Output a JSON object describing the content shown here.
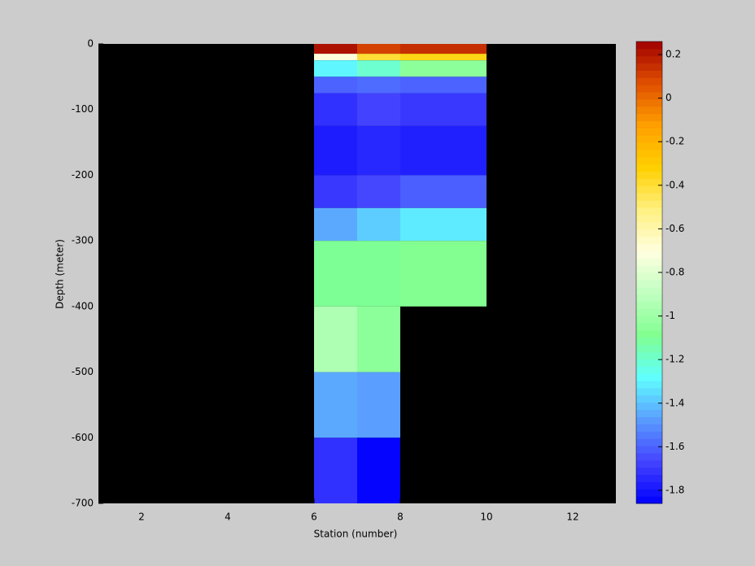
{
  "chart_data": {
    "type": "heatmap",
    "xlabel": "Station (number)",
    "ylabel": "Depth (meter)",
    "x_edges": [
      6,
      7,
      8,
      10
    ],
    "y_edges": [
      0,
      -15,
      -25,
      -50,
      -75,
      -125,
      -200,
      -250,
      -300,
      -400,
      -500,
      -600,
      -700
    ],
    "values": [
      [
        0.22,
        0.1,
        0.15
      ],
      [
        -0.7,
        -0.4,
        -0.35
      ],
      [
        -1.3,
        -1.2,
        -1.05
      ],
      [
        -1.6,
        -1.58,
        -1.6
      ],
      [
        -1.72,
        -1.67,
        -1.7
      ],
      [
        -1.78,
        -1.75,
        -1.77
      ],
      [
        -1.7,
        -1.66,
        -1.61
      ],
      [
        -1.45,
        -1.38,
        -1.32
      ],
      [
        -1.1,
        -1.1,
        -1.08
      ],
      [
        -0.95,
        -1.05,
        null
      ],
      [
        -1.45,
        -1.47,
        null
      ],
      [
        -1.72,
        -1.85,
        null
      ]
    ],
    "xlim": [
      1,
      13
    ],
    "xticks": [
      2,
      4,
      6,
      8,
      10,
      12
    ],
    "ylim": [
      -700,
      0
    ],
    "yticks": [
      0,
      -100,
      -200,
      -300,
      -400,
      -500,
      -600,
      -700
    ],
    "clim": [
      -1.86,
      0.26
    ],
    "cticks": [
      0.2,
      0,
      -0.2,
      -0.4,
      -0.6,
      -0.8,
      -1,
      -1.2,
      -1.4,
      -1.6,
      -1.8
    ],
    "colormap": [
      "#0000ff",
      "#4444ff",
      "#5a9cff",
      "#60ffff",
      "#80ff90",
      "#c0ffc0",
      "#ffffe0",
      "#fff080",
      "#ffd000",
      "#ffa000",
      "#e05000",
      "#a00000"
    ],
    "background": "#000000"
  }
}
